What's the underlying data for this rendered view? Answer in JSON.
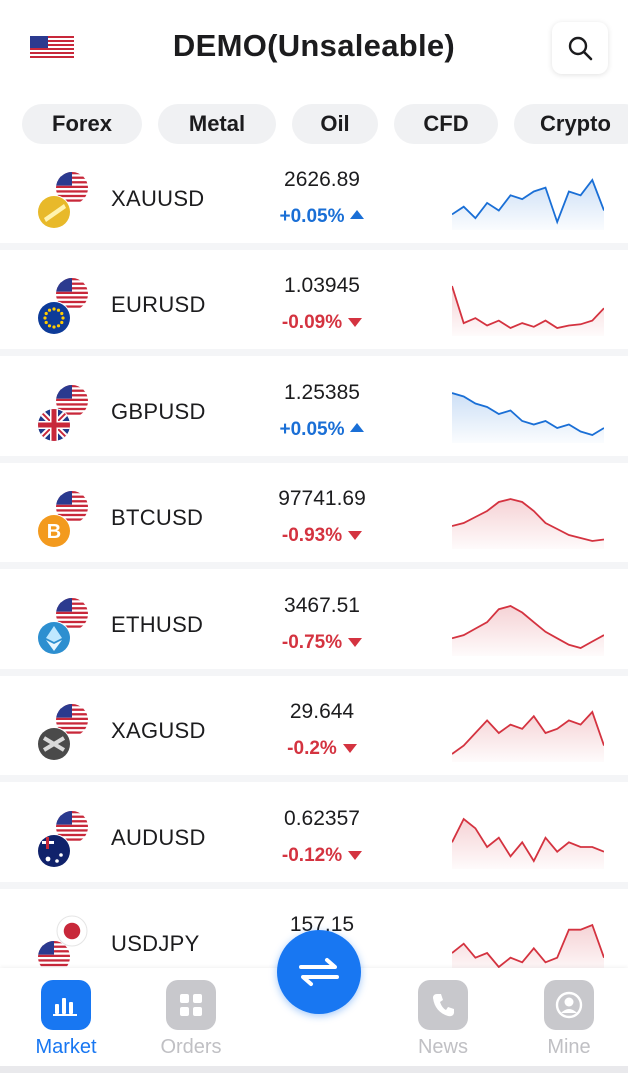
{
  "header": {
    "title": "DEMO(Unsaleable)",
    "flag_icon": "us-flag-icon",
    "search_icon": "search-icon"
  },
  "tabs": [
    {
      "label": "Forex"
    },
    {
      "label": "Metal"
    },
    {
      "label": "Oil"
    },
    {
      "label": "CFD"
    },
    {
      "label": "Crypto"
    }
  ],
  "colors": {
    "accent": "#1877f2",
    "up": "#1a6fd6",
    "down": "#d43340"
  },
  "rows": [
    {
      "symbol": "XAUUSD",
      "price": "2626.89",
      "change": "+0.05%",
      "direction": "up",
      "base_icon": "gold-coin-icon",
      "spark": [
        12,
        16,
        10,
        18,
        14,
        22,
        20,
        24,
        26,
        8,
        24,
        22,
        30,
        14
      ]
    },
    {
      "symbol": "EURUSD",
      "price": "1.03945",
      "change": "-0.09%",
      "direction": "down",
      "base_icon": "eu-flag-icon",
      "spark": [
        40,
        10,
        14,
        8,
        12,
        6,
        10,
        7,
        12,
        6,
        8,
        9,
        12,
        22
      ]
    },
    {
      "symbol": "GBPUSD",
      "price": "1.25385",
      "change": "+0.05%",
      "direction": "up",
      "base_icon": "uk-flag-icon",
      "spark": [
        38,
        36,
        32,
        30,
        26,
        28,
        22,
        20,
        22,
        18,
        20,
        16,
        14,
        18
      ]
    },
    {
      "symbol": "BTCUSD",
      "price": "97741.69",
      "change": "-0.93%",
      "direction": "down",
      "base_icon": "bitcoin-icon",
      "spark": [
        18,
        20,
        24,
        28,
        34,
        36,
        34,
        28,
        20,
        16,
        12,
        10,
        8,
        9
      ]
    },
    {
      "symbol": "ETHUSD",
      "price": "3467.51",
      "change": "-0.75%",
      "direction": "down",
      "base_icon": "ethereum-icon",
      "spark": [
        14,
        16,
        20,
        24,
        32,
        34,
        30,
        24,
        18,
        14,
        10,
        8,
        12,
        16
      ]
    },
    {
      "symbol": "XAGUSD",
      "price": "29.644",
      "change": "-0.2%",
      "direction": "down",
      "base_icon": "silver-icon",
      "spark": [
        8,
        12,
        18,
        24,
        18,
        22,
        20,
        26,
        18,
        20,
        24,
        22,
        28,
        12
      ]
    },
    {
      "symbol": "AUDUSD",
      "price": "0.62357",
      "change": "-0.12%",
      "direction": "down",
      "base_icon": "au-flag-icon",
      "spark": [
        18,
        28,
        24,
        16,
        20,
        12,
        18,
        10,
        20,
        14,
        18,
        16,
        16,
        14
      ]
    },
    {
      "symbol": "USDJPY",
      "price": "157.15",
      "change": "",
      "direction": "down",
      "base_icon": "jp-flag-icon",
      "spark": [
        12,
        16,
        10,
        12,
        6,
        10,
        8,
        14,
        8,
        10,
        22,
        22,
        24,
        10
      ]
    }
  ],
  "tabbar": {
    "items": [
      {
        "label": "Market",
        "icon": "bar-chart-icon",
        "active": true
      },
      {
        "label": "Orders",
        "icon": "grid-icon",
        "active": false
      },
      {
        "label": "News",
        "icon": "phone-icon",
        "active": false
      },
      {
        "label": "Mine",
        "icon": "user-icon",
        "active": false
      }
    ],
    "fab_icon": "swap-arrows-icon"
  }
}
